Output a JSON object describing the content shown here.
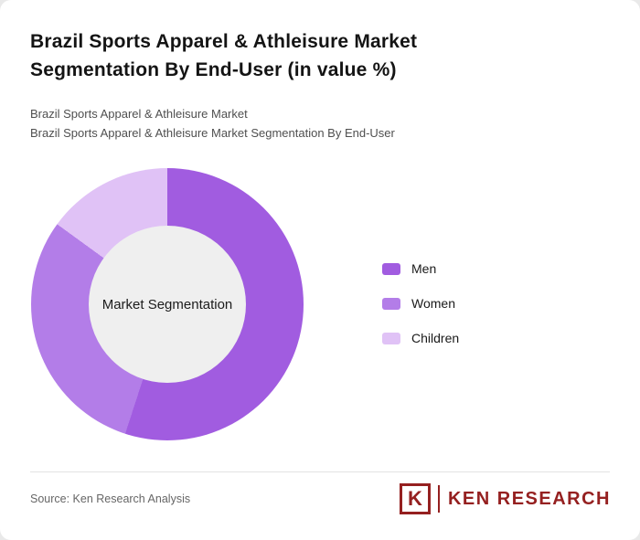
{
  "header": {
    "title_line1": "Brazil Sports Apparel & Athleisure Market",
    "title_line2": "Segmentation By End-User (in value %)",
    "subtitle_line1": "Brazil Sports Apparel & Athleisure Market",
    "subtitle_line2": "Brazil Sports Apparel & Athleisure Market Segmentation By End-User"
  },
  "chart_data": {
    "type": "pie",
    "donut": true,
    "title": "Brazil Sports Apparel & Athleisure Market Segmentation By End-User (in value %)",
    "center_label": "Market Segmentation",
    "categories": [
      "Men",
      "Women",
      "Children"
    ],
    "values": [
      55,
      30,
      15
    ],
    "colors": [
      "#a15ce0",
      "#b37de8",
      "#e0c2f6"
    ],
    "legend_position": "right",
    "hole_color": "#efefef"
  },
  "footer": {
    "source": "Source: Ken Research Analysis",
    "logo_k": "K",
    "logo_text": "KEN RESEARCH"
  }
}
